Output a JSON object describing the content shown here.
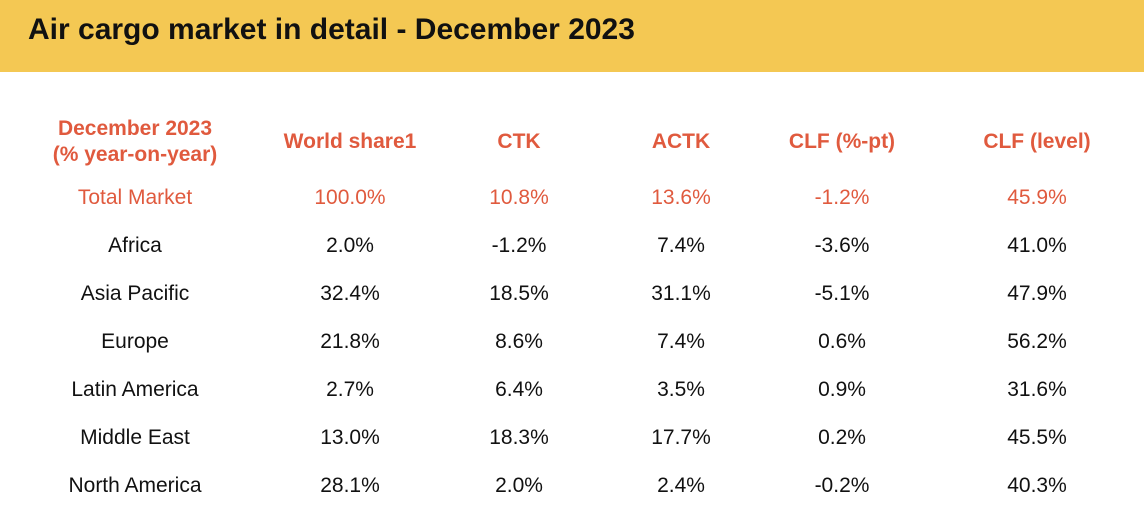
{
  "header": {
    "title": "Air cargo market in detail - December 2023"
  },
  "table": {
    "header": {
      "label_line1": "December 2023",
      "label_line2": "(% year-on-year)",
      "columns": [
        "World share1",
        "CTK",
        "ACTK",
        "CLF (%-pt)",
        "CLF (level)"
      ]
    },
    "rows": [
      {
        "region": "Total Market",
        "values": [
          "100.0%",
          "10.8%",
          "13.6%",
          "-1.2%",
          "45.9%"
        ]
      },
      {
        "region": "Africa",
        "values": [
          "2.0%",
          "-1.2%",
          "7.4%",
          "-3.6%",
          "41.0%"
        ]
      },
      {
        "region": "Asia Pacific",
        "values": [
          "32.4%",
          "18.5%",
          "31.1%",
          "-5.1%",
          "47.9%"
        ]
      },
      {
        "region": "Europe",
        "values": [
          "21.8%",
          "8.6%",
          "7.4%",
          "0.6%",
          "56.2%"
        ]
      },
      {
        "region": "Latin America",
        "values": [
          "2.7%",
          "6.4%",
          "3.5%",
          "0.9%",
          "31.6%"
        ]
      },
      {
        "region": "Middle East",
        "values": [
          "13.0%",
          "18.3%",
          "17.7%",
          "0.2%",
          "45.5%"
        ]
      },
      {
        "region": "North America",
        "values": [
          "28.1%",
          "2.0%",
          "2.4%",
          "-0.2%",
          "40.3%"
        ]
      }
    ]
  },
  "colors": {
    "banner": "#f4c853",
    "accent": "#e05a3e",
    "text": "#111111"
  }
}
